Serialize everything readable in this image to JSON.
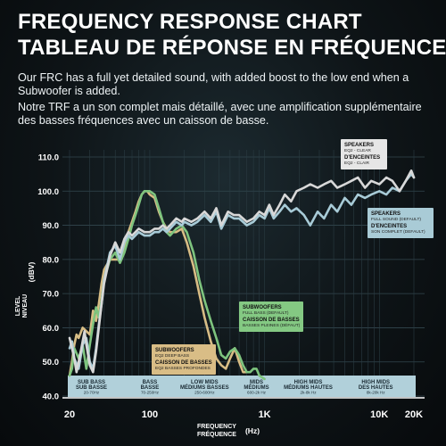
{
  "header": {
    "title_en": "FREQUENCY RESPONSE CHART",
    "title_fr": "TABLEAU DE RÉPONSE EN FRÉQUENCE",
    "desc_en": "Our FRC has a full yet detailed sound, with added boost to the low end when a Subwoofer is added.",
    "desc_fr": "Notre TRF a un son complet mais détaillé, avec une amplification supplémentaire des basses fréquences avec un caisson de basse."
  },
  "chart_data": {
    "type": "line",
    "x_scale": "log",
    "xlim": [
      20,
      20000
    ],
    "ylim": [
      40,
      110
    ],
    "x_ticks": [
      {
        "value": 20,
        "label": "20"
      },
      {
        "value": 100,
        "label": "100"
      },
      {
        "value": 1000,
        "label": "1K"
      },
      {
        "value": 10000,
        "label": "10K"
      },
      {
        "value": 20000,
        "label": "20K"
      }
    ],
    "y_ticks": [
      {
        "value": 110,
        "label": "110.0"
      },
      {
        "value": 100,
        "label": "100.0"
      },
      {
        "value": 90,
        "label": "90.0"
      },
      {
        "value": 80,
        "label": "80.0"
      },
      {
        "value": 70,
        "label": "70.0"
      },
      {
        "value": 60,
        "label": "60.0"
      },
      {
        "value": 50,
        "label": "50.0"
      },
      {
        "value": 40,
        "label": "40.0"
      }
    ],
    "xlabel": [
      "FREQUENCY",
      "FRÉQUENCE",
      "(Hz)"
    ],
    "ylabel": [
      "LEVEL",
      "NIVEAU",
      "(dBV)"
    ],
    "grid": true,
    "bands": [
      {
        "lines": [
          "SUB BASS",
          "SUB BASSE"
        ],
        "range": "20-70Hz",
        "x": 31
      },
      {
        "lines": [
          "BASS",
          "BASSE"
        ],
        "range": "70-250Hz",
        "x": 100
      },
      {
        "lines": [
          "LOW MIDS",
          "MÉDIUMS BASSES"
        ],
        "range": "250-600Hz",
        "x": 300
      },
      {
        "lines": [
          "MIDS",
          "MÉDIUMS"
        ],
        "range": "600-2k Hz",
        "x": 850
      },
      {
        "lines": [
          "HIGH MIDS",
          "MÉDIUMS HAUTES"
        ],
        "range": "2k-8k Hz",
        "x": 2400
      },
      {
        "lines": [
          "HIGH MIDS",
          "DES HAUTES"
        ],
        "range": "8k-20k Hz",
        "x": 9300
      }
    ],
    "series": [
      {
        "name": "SPEAKERS EQ2 - CLEAR / D'ENCEINTES EQ2 - CLAIR",
        "color": "#d8d8d8",
        "legend": {
          "lines": [
            "SPEAKERS",
            "D'ENCEINTES"
          ],
          "sub": [
            "EQ2 - CLEAR",
            "EQ2 - CLAIR"
          ],
          "bg": "#e6e6e6"
        },
        "x": [
          20,
          21,
          22,
          23,
          25,
          27,
          28,
          30,
          32,
          34,
          36,
          38,
          40,
          45,
          50,
          55,
          60,
          65,
          70,
          80,
          90,
          100,
          110,
          120,
          130,
          140,
          150,
          170,
          190,
          200,
          230,
          260,
          300,
          340,
          380,
          420,
          480,
          540,
          600,
          700,
          800,
          900,
          1000,
          1100,
          1200,
          1350,
          1500,
          1700,
          1900,
          2200,
          2500,
          2900,
          3300,
          3800,
          4300,
          5000,
          5700,
          6500,
          7500,
          8500,
          10000,
          11500,
          13000,
          15000,
          17000,
          19000,
          20000
        ],
        "y": [
          57,
          54,
          51,
          47,
          53,
          59,
          55,
          49,
          47,
          53,
          60,
          67,
          73,
          81,
          85,
          82,
          86,
          88,
          87,
          89,
          88,
          88,
          89,
          89,
          90,
          89,
          90,
          92,
          91,
          92,
          91,
          92,
          94,
          92,
          95,
          90,
          94,
          93,
          93,
          91,
          92,
          94,
          93,
          96,
          93,
          96,
          99,
          97,
          100,
          101,
          102,
          101,
          102,
          103,
          101,
          102,
          103,
          104,
          101,
          103,
          102,
          104,
          103,
          100,
          103,
          106,
          104
        ]
      },
      {
        "name": "SPEAKERS FULL SOUND (DEFAULT) / D'ENCEINTES SON COMPLET (DEFAULT)",
        "color": "#a8cbd7",
        "legend": {
          "lines": [
            "SPEAKERS",
            "D'ENCEINTES"
          ],
          "sub": [
            "FULL SOUND (DEFAULT)",
            "SON COMPLET (DEFAULT)"
          ],
          "bg": "#a9cbd6"
        },
        "x": [
          20,
          21,
          22,
          24,
          26,
          28,
          30,
          32,
          34,
          36,
          38,
          40,
          45,
          50,
          55,
          60,
          65,
          70,
          80,
          90,
          100,
          110,
          120,
          130,
          140,
          150,
          170,
          190,
          200,
          230,
          260,
          300,
          340,
          380,
          420,
          480,
          540,
          600,
          700,
          800,
          900,
          1000,
          1100,
          1200,
          1350,
          1500,
          1700,
          1900,
          2200,
          2500,
          2900,
          3300,
          3800,
          4300,
          5000,
          5700,
          6500,
          7500,
          8500,
          10000,
          11500,
          13000,
          15000,
          17000,
          19000,
          20000
        ],
        "y": [
          54,
          56,
          51,
          48,
          55,
          57,
          50,
          48,
          54,
          61,
          67,
          74,
          82,
          84,
          80,
          85,
          87,
          86,
          88,
          87,
          87,
          88,
          88,
          89,
          88,
          89,
          91,
          90,
          91,
          90,
          91,
          93,
          91,
          94,
          89,
          93,
          92,
          92,
          90,
          91,
          93,
          92,
          95,
          92,
          94,
          96,
          94,
          95,
          93,
          90,
          94,
          92,
          96,
          94,
          98,
          96,
          99,
          98,
          99,
          100,
          99,
          101,
          100,
          103,
          105,
          104
        ]
      },
      {
        "name": "SUBWOOFERS FULL BASS (DEFAULT) / CAISSON DE BASSES BASSES PLEINES (DÉFAUT)",
        "color": "#7ec47e",
        "legend": {
          "lines": [
            "SUBWOOFERS",
            "CAISSON DE BASSES"
          ],
          "sub": [
            "FULL BASS (DEFAULT)",
            "BASSES PLEINES (DÉFAUT)"
          ],
          "bg": "#84c983"
        },
        "x": [
          20,
          21,
          22,
          24,
          26,
          28,
          30,
          32,
          34,
          36,
          38,
          40,
          45,
          50,
          55,
          60,
          65,
          70,
          75,
          80,
          85,
          90,
          95,
          100,
          110,
          120,
          130,
          140,
          150,
          170,
          190,
          210,
          240,
          270,
          300,
          340,
          380,
          420,
          460,
          500,
          550,
          600,
          650,
          700,
          750,
          800,
          850,
          900,
          1000
        ],
        "y": [
          46,
          48,
          54,
          51,
          55,
          48,
          55,
          61,
          66,
          63,
          68,
          74,
          80,
          82,
          79,
          82,
          86,
          90,
          93,
          96,
          99,
          100,
          100,
          100,
          99,
          95,
          91,
          88,
          87,
          89,
          90,
          88,
          82,
          74,
          68,
          62,
          57,
          52,
          51,
          53,
          54,
          52,
          49,
          47,
          47,
          48,
          48,
          46,
          45
        ]
      },
      {
        "name": "SUBWOOFERS EQ2 DEEP BASS / CAISSON DE BASSES EQ2 BASSES PROFONDES",
        "color": "#d8bd85",
        "legend": {
          "lines": [
            "SUBWOOFERS",
            "CAISSON DE BASSES"
          ],
          "sub": [
            "EQ2 DEEP BASS",
            "EQ2 BASSES PROFONDES"
          ],
          "bg": "#d9bd86"
        },
        "x": [
          20,
          21,
          22,
          23,
          24,
          26,
          28,
          30,
          32,
          34,
          36,
          38,
          40,
          45,
          50,
          55,
          60,
          65,
          70,
          75,
          80,
          85,
          90,
          95,
          100,
          110,
          120,
          130,
          140,
          150,
          170,
          190,
          210,
          240,
          270,
          300,
          340,
          380,
          420,
          460,
          500,
          550,
          600,
          650,
          700
        ],
        "y": [
          46,
          50,
          55,
          58,
          57,
          60,
          59,
          58,
          65,
          62,
          67,
          73,
          77,
          80,
          80,
          80,
          84,
          88,
          91,
          94,
          97,
          99,
          100,
          100,
          99,
          98,
          94,
          91,
          89,
          88,
          88,
          89,
          85,
          78,
          70,
          63,
          56,
          51,
          49,
          48,
          51,
          54,
          50,
          47,
          47
        ]
      }
    ]
  }
}
